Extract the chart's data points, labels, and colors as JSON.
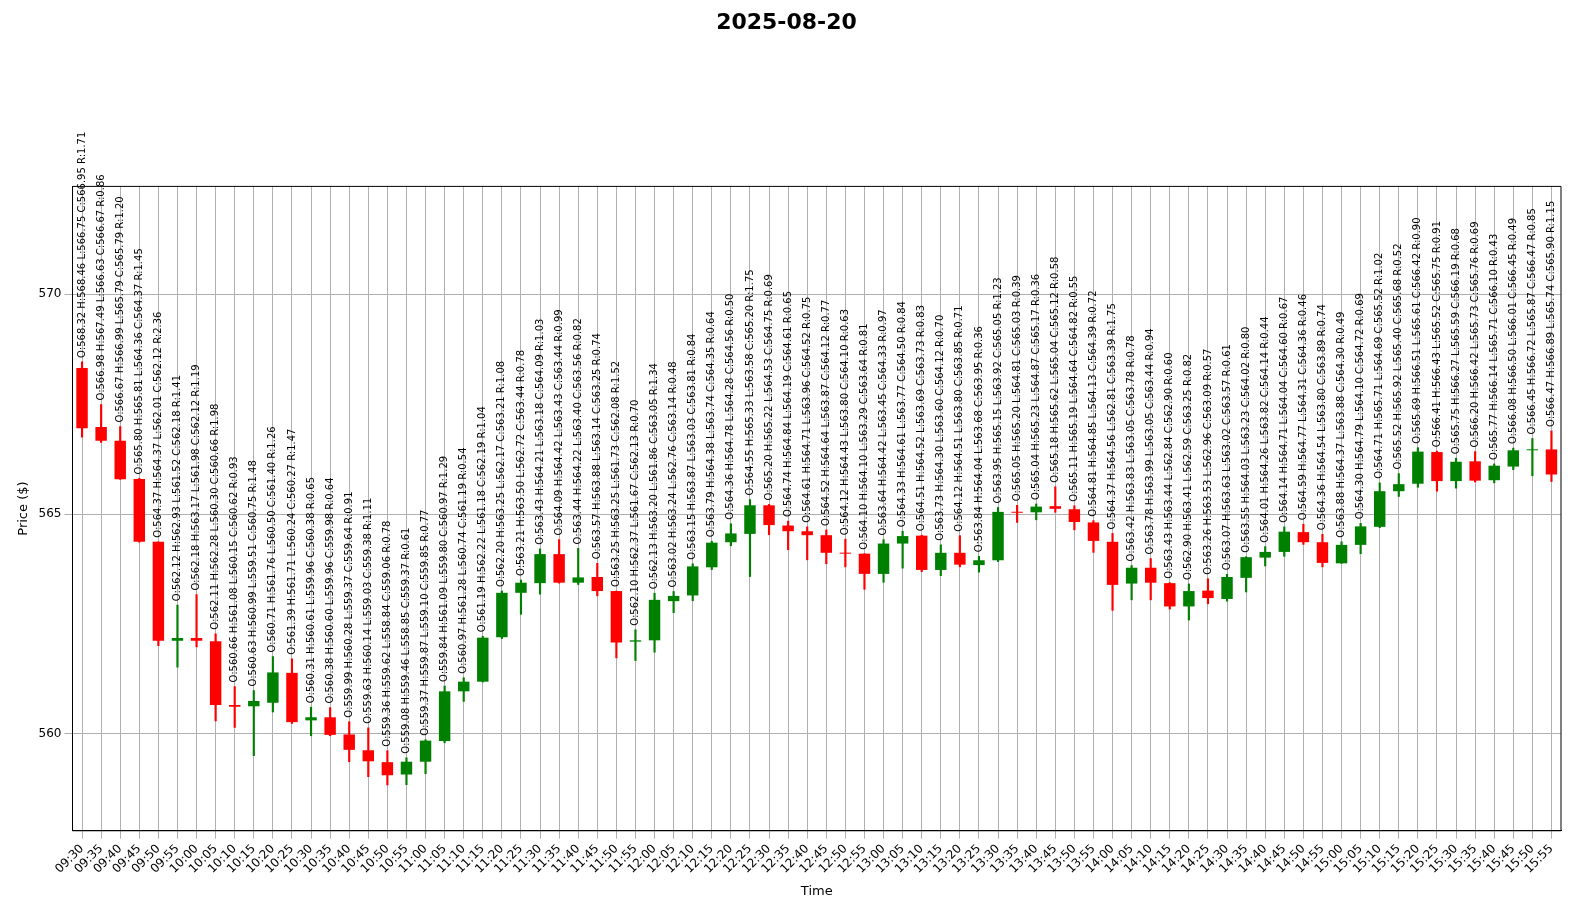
{
  "chart_data": {
    "type": "candlestick",
    "title": "2025-08-20",
    "xlabel": "Time",
    "ylabel": "Price ($)",
    "categories": [
      "09:30",
      "09:35",
      "09:40",
      "09:45",
      "09:50",
      "09:55",
      "10:00",
      "10:05",
      "10:10",
      "10:15",
      "10:20",
      "10:25",
      "10:30",
      "10:35",
      "10:40",
      "10:45",
      "10:50",
      "10:55",
      "11:00",
      "11:05",
      "11:10",
      "11:15",
      "11:20",
      "11:25",
      "11:30",
      "11:35",
      "11:40",
      "11:45",
      "11:50",
      "11:55",
      "12:00",
      "12:05",
      "12:10",
      "12:15",
      "12:20",
      "12:25",
      "12:30",
      "12:35",
      "12:40",
      "12:45",
      "12:50",
      "12:55",
      "13:00",
      "13:05",
      "13:10",
      "13:15",
      "13:20",
      "13:25",
      "13:30",
      "13:35",
      "13:40",
      "13:45",
      "13:50",
      "13:55",
      "14:00",
      "14:05",
      "14:10",
      "14:15",
      "14:20",
      "14:25",
      "14:30",
      "14:35",
      "14:40",
      "14:45",
      "14:50",
      "14:55",
      "15:00",
      "15:05",
      "15:10",
      "15:15",
      "15:20",
      "15:25",
      "15:30",
      "15:35",
      "15:40",
      "15:45",
      "15:50",
      "15:55"
    ],
    "ohlc": [
      [
        568.32,
        568.46,
        566.75,
        566.95
      ],
      [
        566.98,
        567.49,
        566.63,
        566.67
      ],
      [
        566.67,
        566.99,
        565.79,
        565.79
      ],
      [
        565.8,
        565.81,
        564.36,
        564.37
      ],
      [
        564.37,
        564.37,
        562.01,
        562.12
      ],
      [
        562.12,
        562.93,
        561.52,
        562.18
      ],
      [
        562.18,
        563.17,
        561.98,
        562.12
      ],
      [
        562.11,
        562.28,
        560.3,
        560.66
      ],
      [
        560.66,
        561.08,
        560.15,
        560.62
      ],
      [
        560.63,
        560.99,
        559.51,
        560.75
      ],
      [
        560.71,
        561.76,
        560.5,
        561.4
      ],
      [
        561.39,
        561.71,
        560.24,
        560.27
      ],
      [
        560.31,
        560.61,
        559.96,
        560.38
      ],
      [
        560.38,
        560.6,
        559.96,
        559.98
      ],
      [
        559.99,
        560.28,
        559.37,
        559.64
      ],
      [
        559.63,
        560.14,
        559.03,
        559.38
      ],
      [
        559.36,
        559.62,
        558.84,
        559.06
      ],
      [
        559.08,
        559.46,
        558.85,
        559.37
      ],
      [
        559.37,
        559.87,
        559.1,
        559.85
      ],
      [
        559.84,
        561.09,
        559.8,
        560.97
      ],
      [
        560.97,
        561.28,
        560.74,
        561.19
      ],
      [
        561.19,
        562.22,
        561.18,
        562.19
      ],
      [
        562.2,
        563.25,
        562.17,
        563.21
      ],
      [
        563.21,
        563.5,
        562.72,
        563.44
      ],
      [
        563.43,
        564.21,
        563.18,
        564.09
      ],
      [
        564.09,
        564.42,
        563.43,
        563.44
      ],
      [
        563.44,
        564.22,
        563.4,
        563.56
      ],
      [
        563.57,
        563.88,
        563.14,
        563.25
      ],
      [
        563.25,
        563.25,
        561.73,
        562.08
      ],
      [
        562.1,
        562.37,
        561.67,
        562.13
      ],
      [
        562.13,
        563.2,
        561.86,
        563.05
      ],
      [
        563.02,
        563.24,
        562.76,
        563.14
      ],
      [
        563.15,
        563.87,
        563.03,
        563.81
      ],
      [
        563.79,
        564.38,
        563.74,
        564.35
      ],
      [
        564.36,
        564.78,
        564.28,
        564.56
      ],
      [
        564.55,
        565.33,
        563.58,
        565.2
      ],
      [
        565.2,
        565.22,
        564.53,
        564.75
      ],
      [
        564.74,
        564.84,
        564.19,
        564.61
      ],
      [
        564.61,
        564.71,
        563.96,
        564.52
      ],
      [
        564.52,
        564.64,
        563.87,
        564.12
      ],
      [
        564.12,
        564.43,
        563.8,
        564.1
      ],
      [
        564.1,
        564.1,
        563.29,
        563.64
      ],
      [
        563.64,
        564.42,
        563.45,
        564.33
      ],
      [
        564.33,
        564.61,
        563.77,
        564.5
      ],
      [
        564.51,
        564.52,
        563.69,
        563.73
      ],
      [
        563.73,
        564.3,
        563.6,
        564.12
      ],
      [
        564.12,
        564.51,
        563.8,
        563.85
      ],
      [
        563.84,
        564.04,
        563.68,
        563.95
      ],
      [
        563.95,
        565.15,
        563.92,
        565.05
      ],
      [
        565.05,
        565.2,
        564.81,
        565.03
      ],
      [
        565.04,
        565.23,
        564.87,
        565.17
      ],
      [
        565.18,
        565.62,
        565.04,
        565.12
      ],
      [
        565.11,
        565.19,
        564.64,
        564.82
      ],
      [
        564.81,
        564.85,
        564.13,
        564.39
      ],
      [
        564.37,
        564.56,
        562.81,
        563.39
      ],
      [
        563.42,
        563.83,
        563.05,
        563.78
      ],
      [
        563.78,
        563.99,
        563.05,
        563.44
      ],
      [
        563.43,
        563.44,
        562.84,
        562.9
      ],
      [
        562.9,
        563.41,
        562.59,
        563.25
      ],
      [
        563.26,
        563.53,
        562.96,
        563.09
      ],
      [
        563.07,
        563.63,
        563.02,
        563.57
      ],
      [
        563.55,
        564.03,
        563.23,
        564.02
      ],
      [
        564.01,
        564.26,
        563.82,
        564.14
      ],
      [
        564.14,
        564.71,
        564.04,
        564.6
      ],
      [
        564.59,
        564.77,
        564.31,
        564.36
      ],
      [
        564.36,
        564.54,
        563.8,
        563.89
      ],
      [
        563.88,
        564.37,
        563.88,
        564.3
      ],
      [
        564.3,
        564.79,
        564.1,
        564.72
      ],
      [
        564.71,
        565.71,
        564.69,
        565.52
      ],
      [
        565.52,
        565.92,
        565.4,
        565.68
      ],
      [
        565.69,
        566.51,
        565.61,
        566.42
      ],
      [
        566.41,
        566.43,
        565.52,
        565.75
      ],
      [
        565.75,
        566.27,
        565.59,
        566.19
      ],
      [
        566.2,
        566.42,
        565.73,
        565.76
      ],
      [
        565.77,
        566.14,
        565.71,
        566.1
      ],
      [
        566.08,
        566.5,
        566.01,
        566.45
      ],
      [
        566.45,
        566.72,
        565.87,
        566.47
      ],
      [
        566.47,
        566.89,
        565.74,
        565.9
      ]
    ],
    "value_labels": [
      "O:568.32 H:568.46 L:566.75 C:566.95 R:1.71",
      "O:566.98 H:567.49 L:566.63 C:566.67 R:0.86",
      "O:566.67 H:566.99 L:565.79 C:565.79 R:1.20",
      "O:565.80 H:565.81 L:564.36 C:564.37 R:1.45",
      "O:564.37 H:564.37 L:562.01 C:562.12 R:2.36",
      "O:562.12 H:562.93 L:561.52 C:562.18 R:1.41",
      "O:562.18 H:563.17 L:561.98 C:562.12 R:1.19",
      "O:562.11 H:562.28 L:560.30 C:560.66 R:1.98",
      "O:560.66 H:561.08 L:560.15 C:560.62 R:0.93",
      "O:560.63 H:560.99 L:559.51 C:560.75 R:1.48",
      "O:560.71 H:561.76 L:560.50 C:561.40 R:1.26",
      "O:561.39 H:561.71 L:560.24 C:560.27 R:1.47",
      "O:560.31 H:560.61 L:559.96 C:560.38 R:0.65",
      "O:560.38 H:560.60 L:559.96 C:559.98 R:0.64",
      "O:559.99 H:560.28 L:559.37 C:559.64 R:0.91",
      "O:559.63 H:560.14 L:559.03 C:559.38 R:1.11",
      "O:559.36 H:559.62 L:558.84 C:559.06 R:0.78",
      "O:559.08 H:559.46 L:558.85 C:559.37 R:0.61",
      "O:559.37 H:559.87 L:559.10 C:559.85 R:0.77",
      "O:559.84 H:561.09 L:559.80 C:560.97 R:1.29",
      "O:560.97 H:561.28 L:560.74 C:561.19 R:0.54",
      "O:561.19 H:562.22 L:561.18 C:562.19 R:1.04",
      "O:562.20 H:563.25 L:562.17 C:563.21 R:1.08",
      "O:563.21 H:563.50 L:562.72 C:563.44 R:0.78",
      "O:563.43 H:564.21 L:563.18 C:564.09 R:1.03",
      "O:564.09 H:564.42 L:563.43 C:563.44 R:0.99",
      "O:563.44 H:564.22 L:563.40 C:563.56 R:0.82",
      "O:563.57 H:563.88 L:563.14 C:563.25 R:0.74",
      "O:563.25 H:563.25 L:561.73 C:562.08 R:1.52",
      "O:562.10 H:562.37 L:561.67 C:562.13 R:0.70",
      "O:562.13 H:563.20 L:561.86 C:563.05 R:1.34",
      "O:563.02 H:563.24 L:562.76 C:563.14 R:0.48",
      "O:563.15 H:563.87 L:563.03 C:563.81 R:0.84",
      "O:563.79 H:564.38 L:563.74 C:564.35 R:0.64",
      "O:564.36 H:564.78 L:564.28 C:564.56 R:0.50",
      "O:564.55 H:565.33 L:563.58 C:565.20 R:1.75",
      "O:565.20 H:565.22 L:564.53 C:564.75 R:0.69",
      "O:564.74 H:564.84 L:564.19 C:564.61 R:0.65",
      "O:564.61 H:564.71 L:563.96 C:564.52 R:0.75",
      "O:564.52 H:564.64 L:563.87 C:564.12 R:0.77",
      "O:564.12 H:564.43 L:563.80 C:564.10 R:0.63",
      "O:564.10 H:564.10 L:563.29 C:563.64 R:0.81",
      "O:563.64 H:564.42 L:563.45 C:564.33 R:0.97",
      "O:564.33 H:564.61 L:563.77 C:564.50 R:0.84",
      "O:564.51 H:564.52 L:563.69 C:563.73 R:0.83",
      "O:563.73 H:564.30 L:563.60 C:564.12 R:0.70",
      "O:564.12 H:564.51 L:563.80 C:563.85 R:0.71",
      "O:563.84 H:564.04 L:563.68 C:563.95 R:0.36",
      "O:563.95 H:565.15 L:563.92 C:565.05 R:1.23",
      "O:565.05 H:565.20 L:564.81 C:565.03 R:0.39",
      "O:565.04 H:565.23 L:564.87 C:565.17 R:0.36",
      "O:565.18 H:565.62 L:565.04 C:565.12 R:0.58",
      "O:565.11 H:565.19 L:564.64 C:564.82 R:0.55",
      "O:564.81 H:564.85 L:564.13 C:564.39 R:0.72",
      "O:564.37 H:564.56 L:562.81 C:563.39 R:1.75",
      "O:563.42 H:563.83 L:563.05 C:563.78 R:0.78",
      "O:563.78 H:563.99 L:563.05 C:563.44 R:0.94",
      "O:563.43 H:563.44 L:562.84 C:562.90 R:0.60",
      "O:562.90 H:563.41 L:562.59 C:563.25 R:0.82",
      "O:563.26 H:563.53 L:562.96 C:563.09 R:0.57",
      "O:563.07 H:563.63 L:563.02 C:563.57 R:0.61",
      "O:563.55 H:564.03 L:563.23 C:564.02 R:0.80",
      "O:564.01 H:564.26 L:563.82 C:564.14 R:0.44",
      "O:564.14 H:564.71 L:564.04 C:564.60 R:0.67",
      "O:564.59 H:564.77 L:564.31 C:564.36 R:0.46",
      "O:564.36 H:564.54 L:563.80 C:563.89 R:0.74",
      "O:563.88 H:564.37 L:563.88 C:564.30 R:0.49",
      "O:564.30 H:564.79 L:564.10 C:564.72 R:0.69",
      "O:564.71 H:565.71 L:564.69 C:565.52 R:1.02",
      "O:565.52 H:565.92 L:565.40 C:565.68 R:0.52",
      "O:565.69 H:566.51 L:565.61 C:566.42 R:0.90",
      "O:566.41 H:566.43 L:565.52 C:565.75 R:0.91",
      "O:565.75 H:566.27 L:565.59 C:566.19 R:0.68",
      "O:566.20 H:566.42 L:565.73 C:565.76 R:0.69",
      "O:565.77 H:566.14 L:565.71 C:566.10 R:0.43",
      "O:566.08 H:566.50 L:566.01 C:566.45 R:0.49",
      "O:566.45 H:566.72 L:565.87 C:566.47 R:0.85",
      "O:566.47 H:566.89 L:565.74 C:565.90 R:1.15"
    ],
    "colors": [
      "#ff0000",
      "#ff0000",
      "#ff0000",
      "#ff0000",
      "#ff0000",
      "#008000",
      "#ff0000",
      "#ff0000",
      "#ff0000",
      "#008000",
      "#008000",
      "#ff0000",
      "#008000",
      "#ff0000",
      "#ff0000",
      "#ff0000",
      "#ff0000",
      "#008000",
      "#008000",
      "#008000",
      "#008000",
      "#008000",
      "#008000",
      "#008000",
      "#008000",
      "#ff0000",
      "#008000",
      "#ff0000",
      "#ff0000",
      "#008000",
      "#008000",
      "#008000",
      "#008000",
      "#008000",
      "#008000",
      "#008000",
      "#ff0000",
      "#ff0000",
      "#ff0000",
      "#ff0000",
      "#ff0000",
      "#ff0000",
      "#008000",
      "#008000",
      "#ff0000",
      "#008000",
      "#ff0000",
      "#008000",
      "#008000",
      "#ff0000",
      "#008000",
      "#ff0000",
      "#ff0000",
      "#ff0000",
      "#ff0000",
      "#008000",
      "#ff0000",
      "#ff0000",
      "#008000",
      "#ff0000",
      "#008000",
      "#008000",
      "#008000",
      "#008000",
      "#ff0000",
      "#ff0000",
      "#008000",
      "#008000",
      "#008000",
      "#008000",
      "#008000",
      "#ff0000",
      "#008000",
      "#ff0000",
      "#008000",
      "#008000",
      "#008000",
      "#ff0000"
    ],
    "ylim": [
      557.8,
      572.45
    ],
    "yticks": [
      560,
      565,
      570
    ],
    "grid": true
  }
}
